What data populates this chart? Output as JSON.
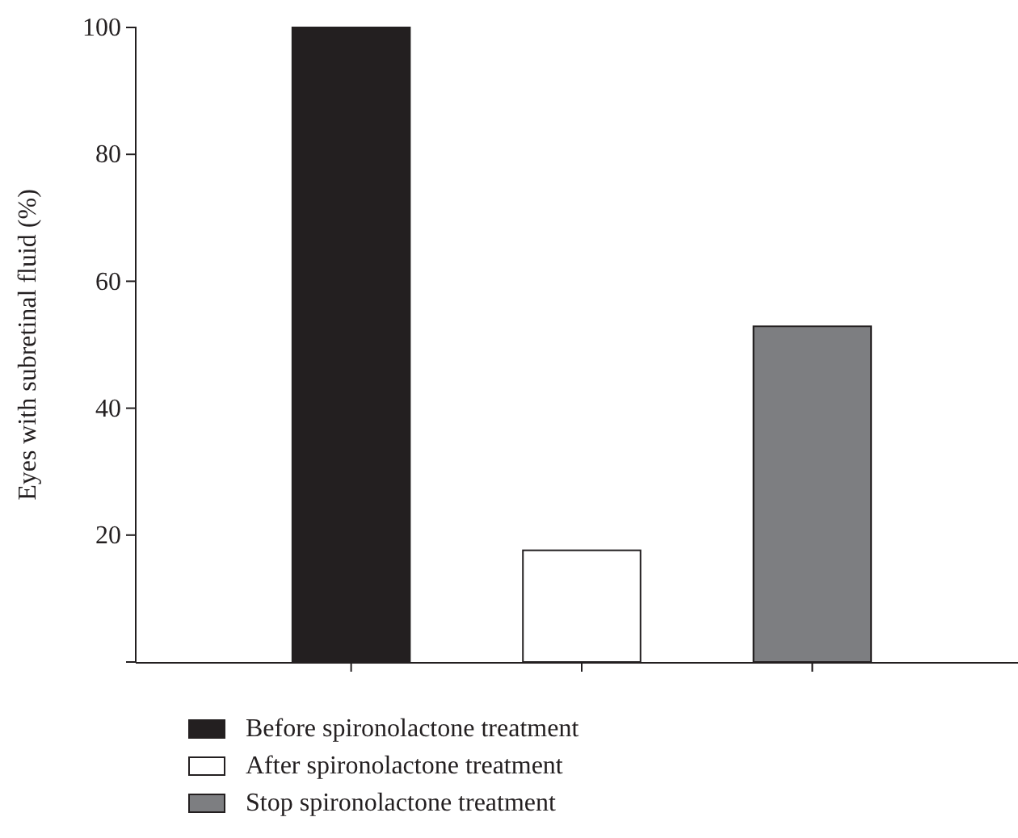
{
  "chart_data": {
    "type": "bar",
    "ylabel": "Eyes with subretinal fluid (%)",
    "categories": [
      null,
      null,
      null
    ],
    "series": [
      {
        "name": "Before spironolactone treatment",
        "color": "#231f20",
        "values": [
          100,
          null,
          null
        ]
      },
      {
        "name": "After spironolactone treatment",
        "color": "#ffffff",
        "values": [
          null,
          17.6,
          null
        ]
      },
      {
        "name": "Stop spironolactone treatment",
        "color": "#7d7e81",
        "values": [
          null,
          null,
          52.9
        ]
      }
    ],
    "ylim": [
      0,
      100
    ],
    "yticks": [
      20,
      40,
      60,
      80,
      100
    ],
    "legend": "bottom"
  }
}
